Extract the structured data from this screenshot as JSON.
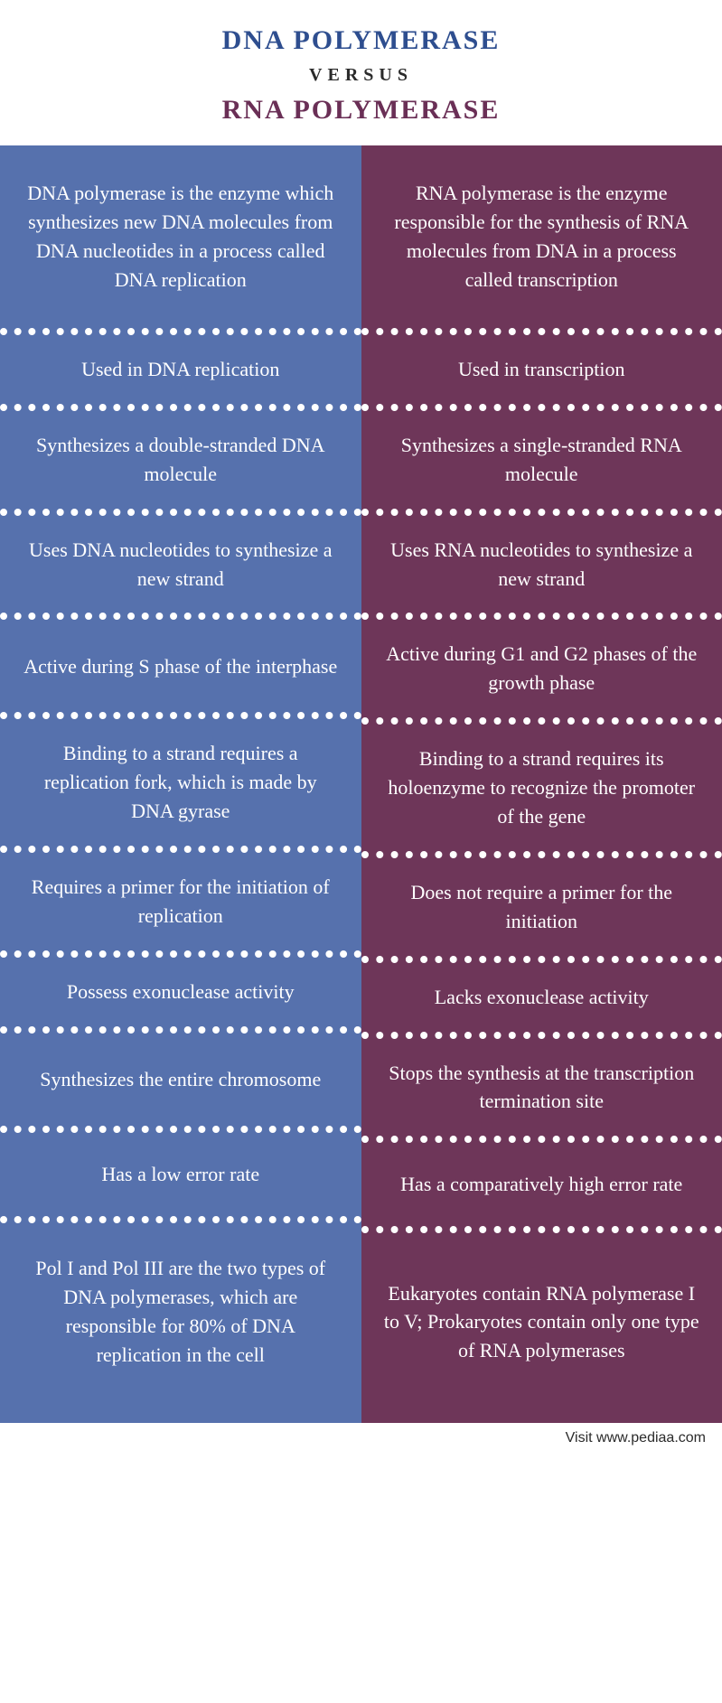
{
  "header": {
    "title_top": "DNA POLYMERASE",
    "versus": "VERSUS",
    "title_bottom": "RNA POLYMERASE",
    "title_top_color": "#2e4e8f",
    "title_bottom_color": "#6a2f56",
    "versus_color": "#2b2b2b"
  },
  "columns": {
    "left": {
      "bg_color": "#5671ad",
      "text_color": "#ffffff"
    },
    "right": {
      "bg_color": "#6e3659",
      "text_color": "#ffffff"
    }
  },
  "rows": [
    {
      "left": "DNA polymerase is the enzyme which synthesizes new DNA molecules from DNA nucleotides in a process called DNA replication",
      "right": "RNA polymerase is the enzyme responsible for the synthesis of RNA molecules from DNA in a process called transcription",
      "min_height": 210
    },
    {
      "left": "Used in DNA replication",
      "right": "Used in transcription",
      "min_height": 78
    },
    {
      "left": "Synthesizes a double-stranded DNA molecule",
      "right": "Synthesizes a single-stranded RNA molecule",
      "min_height": 110
    },
    {
      "left": "Uses DNA nucleotides to synthesize a new strand",
      "right": "Uses RNA nucleotides to synthesize a new strand",
      "min_height": 110
    },
    {
      "left": "Active during S phase of the interphase",
      "right": "Active during G1 and G2 phases of the growth phase",
      "min_height": 110
    },
    {
      "left": "Binding to a strand requires a replication fork, which is made by DNA gyrase",
      "right": "Binding to a strand requires its holoenzyme to recognize the promoter of the gene",
      "min_height": 140
    },
    {
      "left": "Requires a primer for the initiation of replication",
      "right": "Does not require a primer for the initiation",
      "min_height": 110
    },
    {
      "left": "Possess exonuclease activity",
      "right": "Lacks exonuclease activity",
      "min_height": 78
    },
    {
      "left": "Synthesizes the entire chromosome",
      "right": "Stops the synthesis at the transcription termination site",
      "min_height": 110
    },
    {
      "left": "Has a low error rate",
      "right": "Has a comparatively high error rate",
      "min_height": 100
    },
    {
      "left": "Pol I and Pol III are the two types of DNA polymerases, which are responsible for 80% of DNA replication in the cell",
      "right": "Eukaryotes contain RNA polymerase I to V; Prokaryotes contain only one type of RNA polymerases",
      "min_height": 210
    }
  ],
  "footer": {
    "text": "Visit www.pediaa.com",
    "color": "#2b2b2b"
  },
  "style": {
    "divider_style": "dotted",
    "divider_color": "#ffffff",
    "divider_width": 8,
    "cell_font_size": 22,
    "title_font_size": 30,
    "versus_font_size": 20,
    "font_family": "Georgia, serif"
  }
}
